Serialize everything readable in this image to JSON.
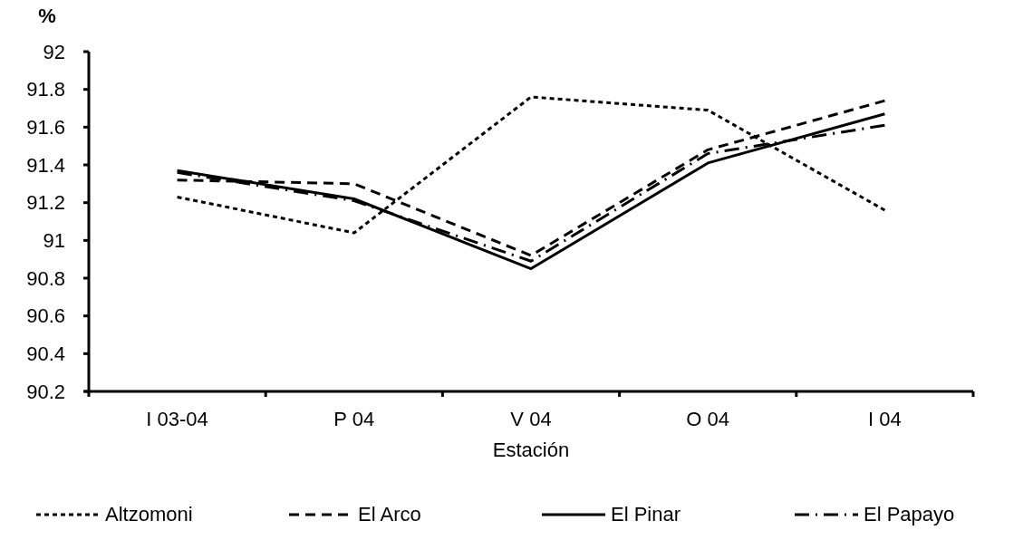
{
  "chart_data": {
    "type": "line",
    "xlabel": "Estación",
    "ylabel": "%",
    "categories": [
      "I 03-04",
      "P 04",
      "V 04",
      "O 04",
      "I 04"
    ],
    "ylim": [
      90.2,
      92
    ],
    "yticks": [
      90.2,
      90.4,
      90.6,
      90.8,
      91,
      91.2,
      91.4,
      91.6,
      91.8,
      92
    ],
    "grid": false,
    "legend": "bottom",
    "marker": "none",
    "series": [
      {
        "name": "Altzomoni",
        "color": "#000000",
        "line_style": "dotted",
        "values": [
          91.23,
          91.04,
          91.76,
          91.69,
          91.16
        ]
      },
      {
        "name": "El Arco",
        "color": "#000000",
        "line_style": "dashed",
        "values": [
          91.32,
          91.3,
          90.92,
          91.48,
          91.74
        ]
      },
      {
        "name": "El Pinar",
        "color": "#000000",
        "line_style": "solid",
        "values": [
          91.37,
          91.22,
          90.85,
          91.41,
          91.67
        ]
      },
      {
        "name": "El Papayo",
        "color": "#000000",
        "line_style": "dashdot",
        "values": [
          91.36,
          91.21,
          90.89,
          91.46,
          91.61
        ]
      }
    ]
  }
}
